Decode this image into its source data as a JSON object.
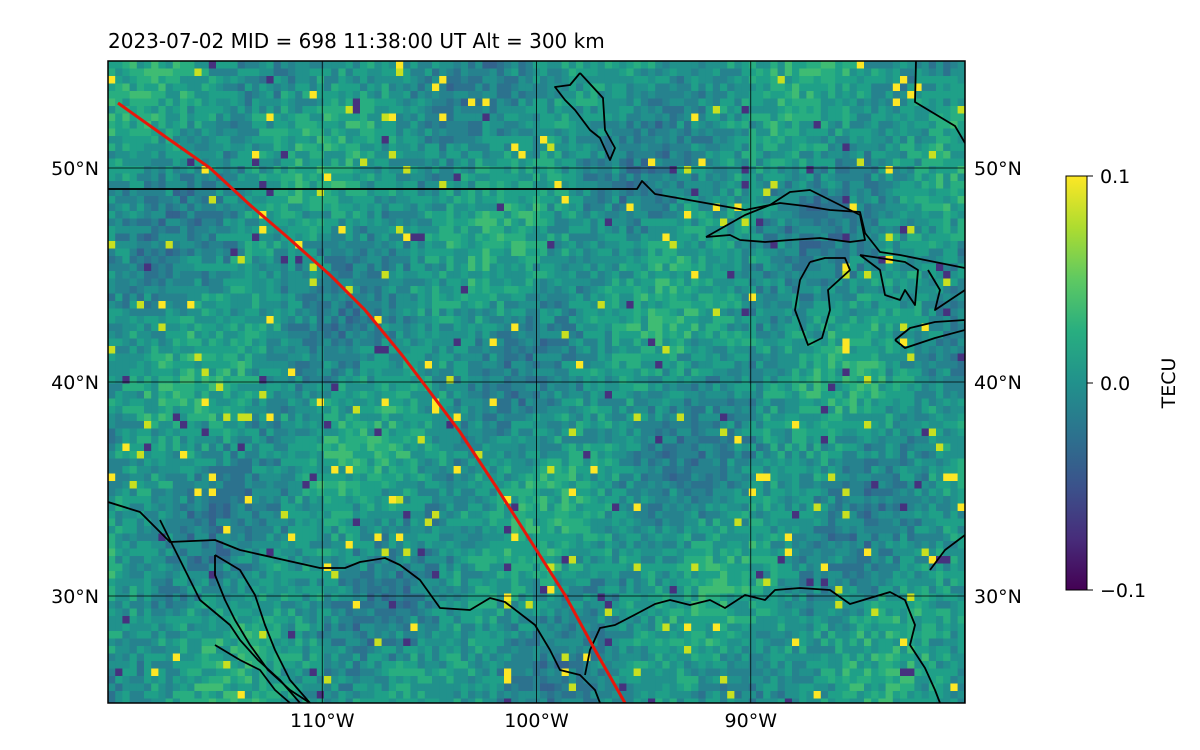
{
  "title": "2023-07-02  MID = 698    11:38:00  UT  Alt = 300 km",
  "map": {
    "lon_range": [
      -120,
      -80
    ],
    "lat_range": [
      25,
      55
    ],
    "gridlines": true,
    "lon_ticks": [
      {
        "value": -110,
        "label": "110°W"
      },
      {
        "value": -100,
        "label": "100°W"
      },
      {
        "value": -90,
        "label": "90°W"
      }
    ],
    "lat_ticks": [
      {
        "value": 50,
        "label": "50°N"
      },
      {
        "value": 40,
        "label": "40°N"
      },
      {
        "value": 30,
        "label": "30°N"
      }
    ],
    "track_color": "#e8170b",
    "coastline_color": "#000000"
  },
  "colorbar": {
    "label": "TECU",
    "colormap": "viridis",
    "ticks": [
      {
        "value": 0.1,
        "label": "0.1"
      },
      {
        "value": 0.0,
        "label": "0.0"
      },
      {
        "value": -0.1,
        "label": "−0.1"
      }
    ],
    "range": [
      -0.1,
      0.1
    ]
  }
}
